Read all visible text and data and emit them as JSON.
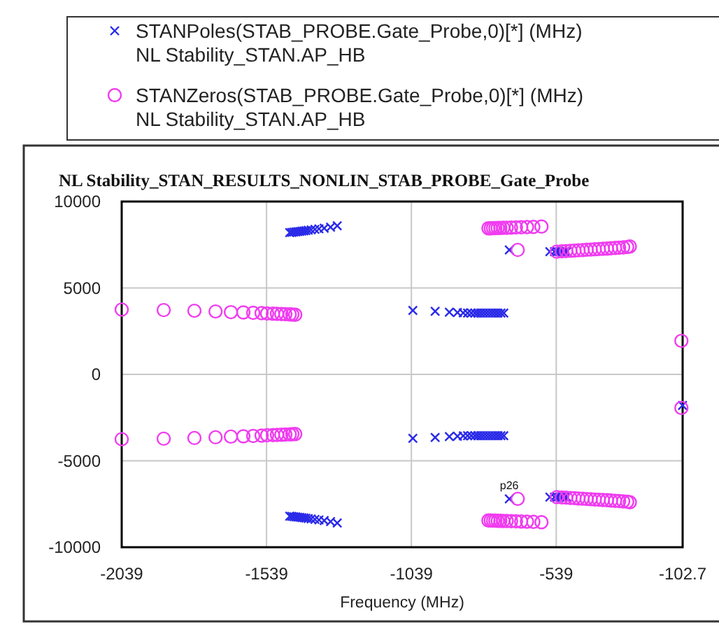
{
  "chart_data": {
    "type": "scatter",
    "title": "NL Stability_STAN_RESULTS_NONLIN_STAB_PROBE_Gate_Probe",
    "xlabel": "Frequency (MHz)",
    "xlim": [
      -2039,
      -102.7
    ],
    "xticks": [
      -2039,
      -1539,
      -1039,
      -539,
      -102.7
    ],
    "ylim": [
      -10000,
      10000
    ],
    "yticks": [
      -10000,
      -5000,
      0,
      5000,
      10000
    ],
    "grid": true,
    "legend": "top",
    "annotations": [
      {
        "text": "p26",
        "x": -701,
        "y": -7200
      }
    ],
    "series": [
      {
        "name": "STANPoles(STAB_PROBE.Gate_Probe,0)[*] (MHz)\nNL Stability_STAN.AP_HB",
        "color": "#2a2ae8",
        "marker": "cross",
        "x": [
          -1459,
          -1452,
          -1445,
          -1438,
          -1431,
          -1424,
          -1417,
          -1410,
          -1403,
          -1395,
          -1385,
          -1372,
          -1358,
          -1340,
          -1318,
          -1295,
          -1459,
          -1452,
          -1445,
          -1438,
          -1431,
          -1424,
          -1417,
          -1410,
          -1403,
          -1395,
          -1385,
          -1372,
          -1358,
          -1340,
          -1318,
          -1295,
          -1034,
          -957,
          -908,
          -880,
          -860,
          -845,
          -832,
          -820,
          -810,
          -800,
          -790,
          -780,
          -770,
          -760,
          -750,
          -740,
          -730,
          -720,
          -1034,
          -957,
          -908,
          -880,
          -860,
          -845,
          -832,
          -820,
          -810,
          -800,
          -790,
          -780,
          -770,
          -760,
          -750,
          -740,
          -730,
          -720,
          -701,
          -561,
          -545,
          -535,
          -528,
          -522,
          -516,
          -510,
          -503,
          -701,
          -561,
          -545,
          -535,
          -528,
          -522,
          -516,
          -510,
          -503,
          -103
        ],
        "values": [
          8200,
          8210,
          8230,
          8240,
          8260,
          8270,
          8290,
          8300,
          8320,
          8340,
          8360,
          8390,
          8420,
          8460,
          8520,
          8600,
          -8200,
          -8210,
          -8230,
          -8240,
          -8260,
          -8270,
          -8290,
          -8300,
          -8320,
          -8340,
          -8360,
          -8390,
          -8420,
          -8460,
          -8520,
          -8600,
          3700,
          3650,
          3600,
          3580,
          3560,
          3550,
          3550,
          3550,
          3550,
          3550,
          3550,
          3550,
          3550,
          3550,
          3550,
          3550,
          3550,
          3550,
          -3700,
          -3650,
          -3600,
          -3580,
          -3560,
          -3550,
          -3550,
          -3550,
          -3550,
          -3550,
          -3550,
          -3550,
          -3550,
          -3550,
          -3550,
          -3550,
          -3550,
          -3550,
          7200,
          7100,
          7100,
          7100,
          7100,
          7100,
          7100,
          7100,
          7100,
          -7200,
          -7100,
          -7100,
          -7100,
          -7100,
          -7100,
          -7100,
          -7100,
          -7100,
          -1800
        ]
      },
      {
        "name": "STANZeros(STAB_PROBE.Gate_Probe,0)[*] (MHz)\nNL Stability_STAN.AP_HB",
        "color": "#f03cf0",
        "marker": "circle",
        "x": [
          -2039,
          -1894,
          -1788,
          -1715,
          -1662,
          -1619,
          -1585,
          -1556,
          -1537,
          -1517,
          -1503,
          -1488,
          -1474,
          -1459,
          -1450,
          -1440,
          -2039,
          -1894,
          -1788,
          -1715,
          -1662,
          -1619,
          -1585,
          -1556,
          -1537,
          -1517,
          -1503,
          -1488,
          -1474,
          -1459,
          -1450,
          -1440,
          -773,
          -765,
          -757,
          -749,
          -741,
          -732,
          -722,
          -710,
          -695,
          -678,
          -660,
          -640,
          -618,
          -590,
          -773,
          -765,
          -757,
          -749,
          -741,
          -732,
          -722,
          -710,
          -695,
          -678,
          -660,
          -640,
          -618,
          -590,
          -672,
          -672,
          -537,
          -520,
          -505,
          -490,
          -476,
          -462,
          -448,
          -434,
          -420,
          -406,
          -392,
          -378,
          -364,
          -350,
          -336,
          -322,
          -308,
          -294,
          -285,
          -537,
          -520,
          -505,
          -490,
          -476,
          -462,
          -448,
          -434,
          -420,
          -406,
          -392,
          -378,
          -364,
          -350,
          -336,
          -322,
          -308,
          -294,
          -285,
          -107,
          -107
        ],
        "values": [
          3750,
          3720,
          3680,
          3640,
          3600,
          3580,
          3560,
          3540,
          3520,
          3510,
          3500,
          3490,
          3480,
          3470,
          3460,
          3450,
          -3750,
          -3720,
          -3680,
          -3640,
          -3600,
          -3580,
          -3560,
          -3540,
          -3520,
          -3510,
          -3500,
          -3490,
          -3480,
          -3470,
          -3460,
          -3450,
          8450,
          8450,
          8460,
          8460,
          8470,
          8470,
          8480,
          8480,
          8490,
          8500,
          8510,
          8520,
          8530,
          8550,
          -8450,
          -8450,
          -8460,
          -8460,
          -8470,
          -8470,
          -8480,
          -8480,
          -8490,
          -8500,
          -8510,
          -8520,
          -8530,
          -8550,
          7200,
          -7200,
          7100,
          7120,
          7130,
          7150,
          7160,
          7180,
          7190,
          7210,
          7220,
          7240,
          7250,
          7270,
          7280,
          7300,
          7320,
          7330,
          7350,
          7370,
          7400,
          -7100,
          -7120,
          -7130,
          -7150,
          -7160,
          -7180,
          -7190,
          -7210,
          -7220,
          -7240,
          -7250,
          -7270,
          -7280,
          -7300,
          -7320,
          -7330,
          -7350,
          -7370,
          -7400,
          1940,
          -1940
        ]
      }
    ]
  }
}
